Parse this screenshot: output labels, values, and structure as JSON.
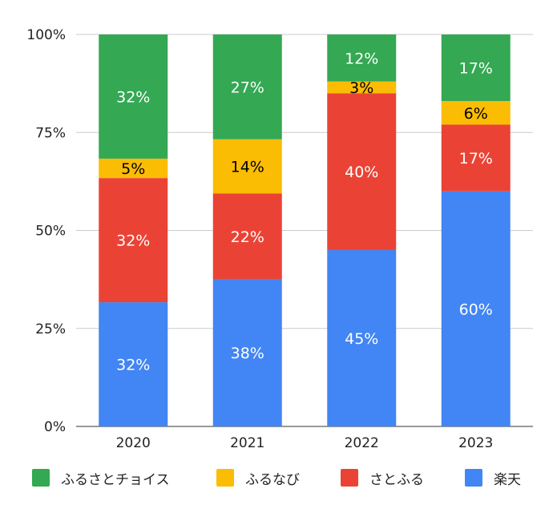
{
  "chart_data": {
    "type": "bar",
    "stacked": true,
    "percent_stacked": true,
    "categories": [
      "2020",
      "2021",
      "2022",
      "2023"
    ],
    "series": [
      {
        "name": "楽天",
        "color": "#4285F4",
        "label_color": "#ffffff",
        "values": [
          32,
          38,
          45,
          60
        ],
        "labels": [
          "32%",
          "38%",
          "45%",
          "60%"
        ]
      },
      {
        "name": "さとふる",
        "color": "#EA4335",
        "label_color": "#ffffff",
        "values": [
          32,
          22,
          40,
          17
        ],
        "labels": [
          "32%",
          "22%",
          "40%",
          "17%"
        ]
      },
      {
        "name": "ふるなび",
        "color": "#FBBC04",
        "label_color": "#000000",
        "values": [
          5,
          14,
          3,
          6
        ],
        "labels": [
          "5%",
          "14%",
          "3%",
          "6%"
        ]
      },
      {
        "name": "ふるさとチョイス",
        "color": "#34A853",
        "label_color": "#ffffff",
        "values": [
          32,
          27,
          12,
          17
        ],
        "labels": [
          "32%",
          "27%",
          "12%",
          "17%"
        ]
      }
    ],
    "y_ticks": [
      "0%",
      "25%",
      "50%",
      "75%",
      "100%"
    ],
    "ylim": [
      0,
      100
    ],
    "grid": true,
    "legend_position": "bottom",
    "legend_order": [
      "ふるさとチョイス",
      "ふるなび",
      "さとふる",
      "楽天"
    ]
  }
}
